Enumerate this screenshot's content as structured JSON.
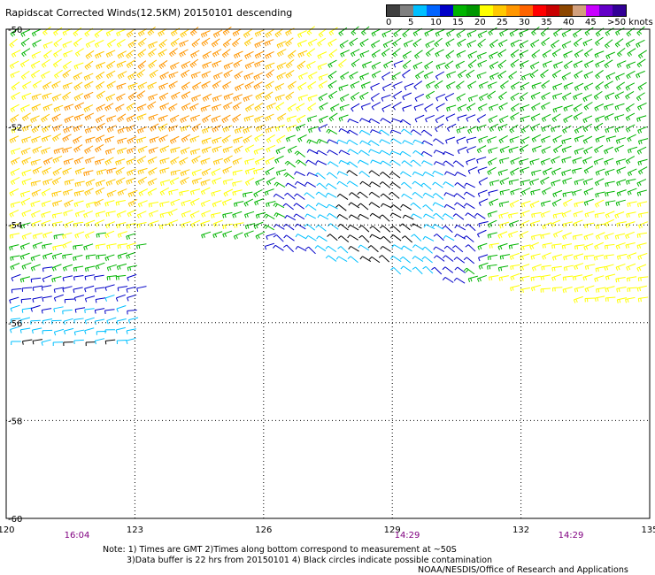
{
  "title": "Rapidscat Corrected Winds(12.5KM) 20150101 descending",
  "legend": {
    "colors": [
      "#404040",
      "#808080",
      "#00c0ff",
      "#0064ff",
      "#0000c8",
      "#00b400",
      "#009600",
      "#ffff00",
      "#ffc800",
      "#ff9600",
      "#ff6400",
      "#ff0000",
      "#c80000",
      "#8c4600",
      "#d2a07d",
      "#c800ff",
      "#6400c8",
      "#320096"
    ],
    "labels": [
      "0",
      "5",
      "10",
      "15",
      "20",
      "25",
      "30",
      "35",
      "40",
      "45",
      ">50 knots"
    ]
  },
  "map": {
    "lon_ticks": [
      "120",
      "123",
      "126",
      "129",
      "132",
      "135"
    ],
    "lat_ticks": [
      "-50",
      "-52",
      "-54",
      "-56",
      "-58",
      "-60"
    ],
    "times": [
      "16:04",
      "14:29",
      "14:29"
    ]
  },
  "notes": {
    "line1": "Note: 1) Times are GMT 2)Times along bottom correspond to measurement at ~50S",
    "line2": "3)Data buffer is 22 hrs from 20150101 4) Black circles indicate possible contamination",
    "credit": "NOAA/NESDIS/Office of Research and Applications"
  }
}
